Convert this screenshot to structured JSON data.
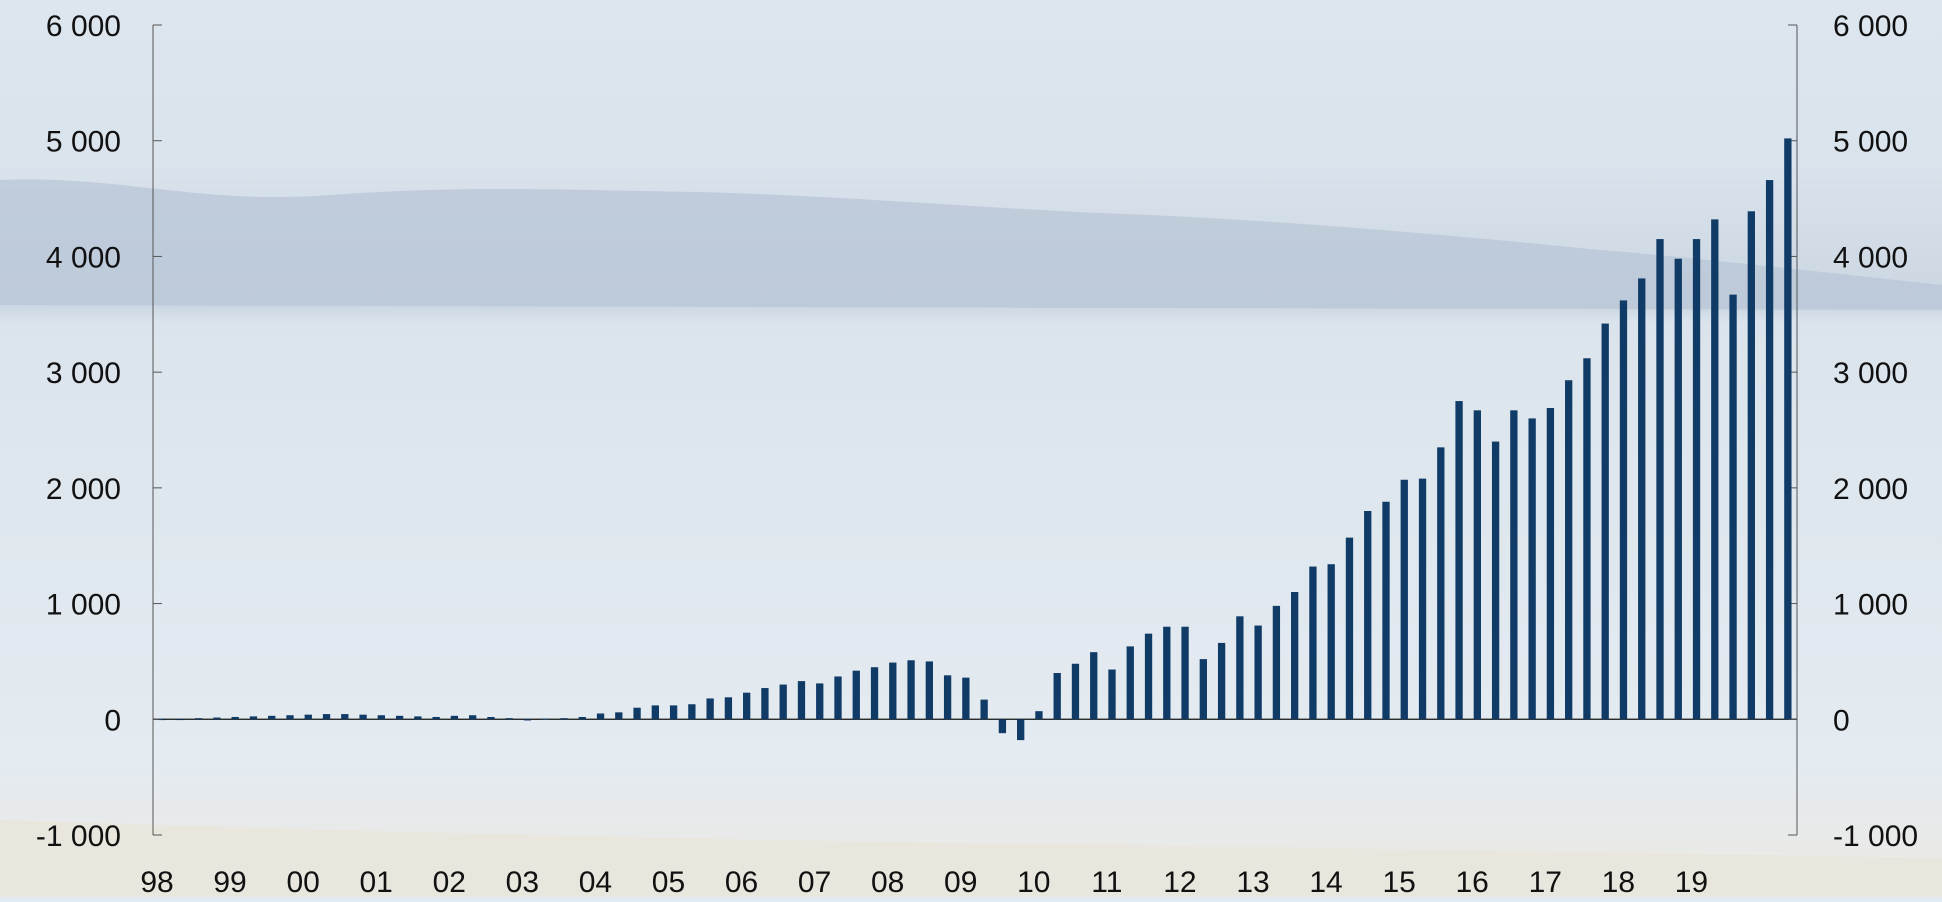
{
  "chart_data": {
    "type": "bar",
    "title": "",
    "xlabel": "",
    "ylabel": "",
    "ylim": [
      -1000,
      6000
    ],
    "yticks": [
      -1000,
      0,
      1000,
      2000,
      3000,
      4000,
      5000,
      6000
    ],
    "ytick_labels": [
      "-1 000",
      "0",
      "1 000",
      "2 000",
      "3 000",
      "4 000",
      "5 000",
      "6 000"
    ],
    "secondary_y_axis": true,
    "grid": false,
    "legend": "none",
    "xtick_labels": [
      "98",
      "99",
      "00",
      "01",
      "02",
      "03",
      "04",
      "05",
      "06",
      "07",
      "08",
      "09",
      "10",
      "11",
      "12",
      "13",
      "14",
      "15",
      "16",
      "17",
      "18",
      "19"
    ],
    "bar_color": "#0f3b66",
    "background_color": "#e3ebf2",
    "frequency": "quarterly",
    "start_label": "98",
    "values": [
      0,
      0,
      10,
      15,
      20,
      25,
      30,
      35,
      40,
      45,
      45,
      40,
      35,
      30,
      25,
      20,
      30,
      35,
      20,
      10,
      -10,
      5,
      10,
      20,
      50,
      60,
      100,
      120,
      120,
      130,
      180,
      190,
      230,
      270,
      300,
      330,
      310,
      370,
      420,
      450,
      490,
      510,
      500,
      380,
      360,
      170,
      -120,
      -180,
      70,
      400,
      480,
      580,
      430,
      630,
      740,
      800,
      800,
      520,
      660,
      890,
      810,
      980,
      1100,
      1320,
      1340,
      1570,
      1800,
      1880,
      2070,
      2080,
      2350,
      2750,
      2670,
      2400,
      2670,
      2600,
      2690,
      2930,
      3120,
      3420,
      3620,
      3810,
      4150,
      3980,
      4150,
      4320,
      3670,
      4390,
      4660,
      5020
    ]
  }
}
